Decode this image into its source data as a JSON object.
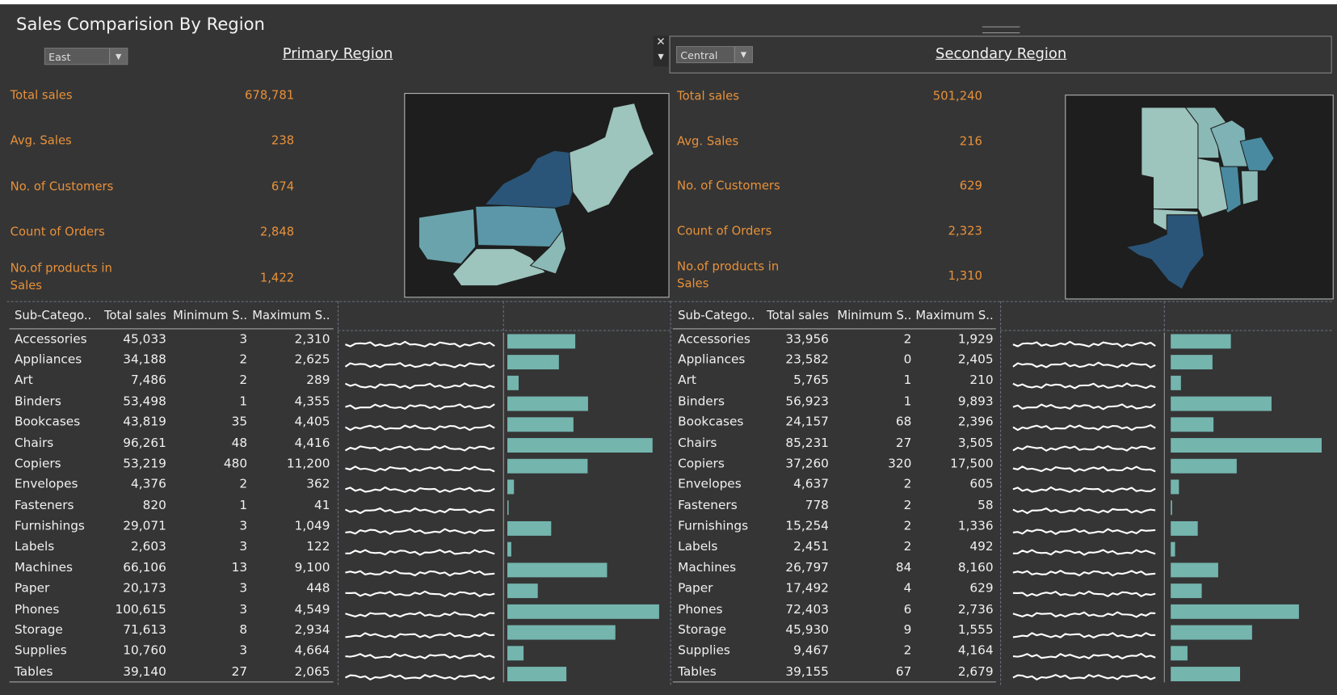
{
  "header": {
    "title": "Sales Comparision By Region"
  },
  "panels": [
    {
      "selector": "East",
      "heading": "Primary Region",
      "kpis": [
        {
          "label": "Total sales",
          "value": "678,781"
        },
        {
          "label": "Avg. Sales",
          "value": "238"
        },
        {
          "label": "No. of Customers",
          "value": "674"
        },
        {
          "label": "Count of Orders",
          "value": "2,848"
        },
        {
          "label": "No.of products in Sales",
          "value": "1,422"
        }
      ],
      "table": {
        "columns": [
          "Sub-Catego..",
          "Total sales",
          "Minimum S..",
          "Maximum S.."
        ],
        "rows": [
          [
            "Accessories",
            "45,033",
            "3",
            "2,310"
          ],
          [
            "Appliances",
            "34,188",
            "2",
            "2,625"
          ],
          [
            "Art",
            "7,486",
            "2",
            "289"
          ],
          [
            "Binders",
            "53,498",
            "1",
            "4,355"
          ],
          [
            "Bookcases",
            "43,819",
            "35",
            "4,405"
          ],
          [
            "Chairs",
            "96,261",
            "48",
            "4,416"
          ],
          [
            "Copiers",
            "53,219",
            "480",
            "11,200"
          ],
          [
            "Envelopes",
            "4,376",
            "2",
            "362"
          ],
          [
            "Fasteners",
            "820",
            "1",
            "41"
          ],
          [
            "Furnishings",
            "29,071",
            "3",
            "1,049"
          ],
          [
            "Labels",
            "2,603",
            "3",
            "122"
          ],
          [
            "Machines",
            "66,106",
            "13",
            "9,100"
          ],
          [
            "Paper",
            "20,173",
            "3",
            "448"
          ],
          [
            "Phones",
            "100,615",
            "3",
            "4,549"
          ],
          [
            "Storage",
            "71,613",
            "8",
            "2,934"
          ],
          [
            "Supplies",
            "10,760",
            "3",
            "4,664"
          ],
          [
            "Tables",
            "39,140",
            "27",
            "2,065"
          ]
        ]
      }
    },
    {
      "selector": "Central",
      "heading": "Secondary Region",
      "kpis": [
        {
          "label": "Total sales",
          "value": "501,240"
        },
        {
          "label": "Avg. Sales",
          "value": "216"
        },
        {
          "label": "No. of Customers",
          "value": "629"
        },
        {
          "label": "Count of Orders",
          "value": "2,323"
        },
        {
          "label": "No.of products in Sales",
          "value": "1,310"
        }
      ],
      "table": {
        "columns": [
          "Sub-Catego..",
          "Total sales",
          "Minimum S..",
          "Maximum S.."
        ],
        "rows": [
          [
            "Accessories",
            "33,956",
            "2",
            "1,929"
          ],
          [
            "Appliances",
            "23,582",
            "0",
            "2,405"
          ],
          [
            "Art",
            "5,765",
            "1",
            "210"
          ],
          [
            "Binders",
            "56,923",
            "1",
            "9,893"
          ],
          [
            "Bookcases",
            "24,157",
            "68",
            "2,396"
          ],
          [
            "Chairs",
            "85,231",
            "27",
            "3,505"
          ],
          [
            "Copiers",
            "37,260",
            "320",
            "17,500"
          ],
          [
            "Envelopes",
            "4,637",
            "2",
            "605"
          ],
          [
            "Fasteners",
            "778",
            "2",
            "58"
          ],
          [
            "Furnishings",
            "15,254",
            "2",
            "1,336"
          ],
          [
            "Labels",
            "2,451",
            "2",
            "492"
          ],
          [
            "Machines",
            "26,797",
            "84",
            "8,160"
          ],
          [
            "Paper",
            "17,492",
            "4",
            "629"
          ],
          [
            "Phones",
            "72,403",
            "6",
            "2,736"
          ],
          [
            "Storage",
            "45,930",
            "9",
            "1,555"
          ],
          [
            "Supplies",
            "9,467",
            "2",
            "4,164"
          ],
          [
            "Tables",
            "39,155",
            "67",
            "2,679"
          ]
        ]
      }
    }
  ]
}
